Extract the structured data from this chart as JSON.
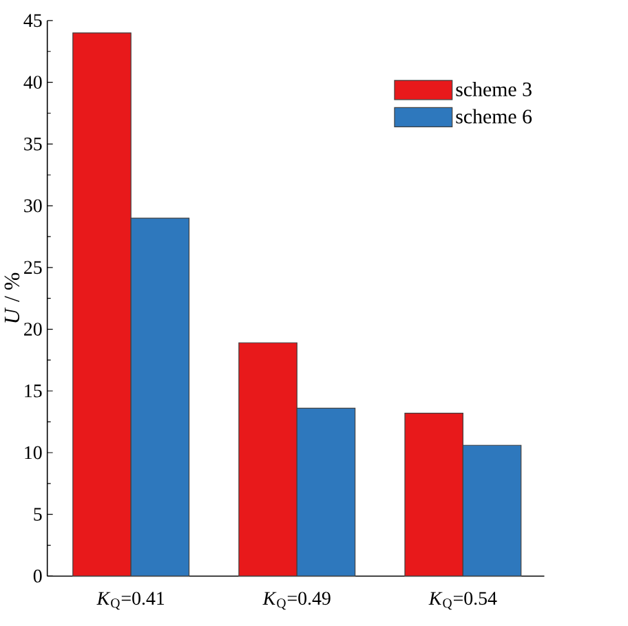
{
  "chart_data": {
    "type": "bar",
    "ylabel": "*U* / %",
    "categories": [
      "*K*$_{Q}$=0.41",
      "*K*$_{Q}$=0.49",
      "*K*$_{Q}$=0.54"
    ],
    "series": [
      {
        "name": "scheme 3",
        "color": "#e8191b",
        "values": [
          44,
          18.9,
          13.2
        ]
      },
      {
        "name": "scheme 6",
        "color": "#2e78bd",
        "values": [
          29,
          13.6,
          10.6
        ]
      }
    ],
    "ylim": [
      0,
      45
    ],
    "yticks": [
      0,
      5,
      10,
      15,
      20,
      25,
      30,
      35,
      40,
      45
    ],
    "legend": "top right"
  }
}
